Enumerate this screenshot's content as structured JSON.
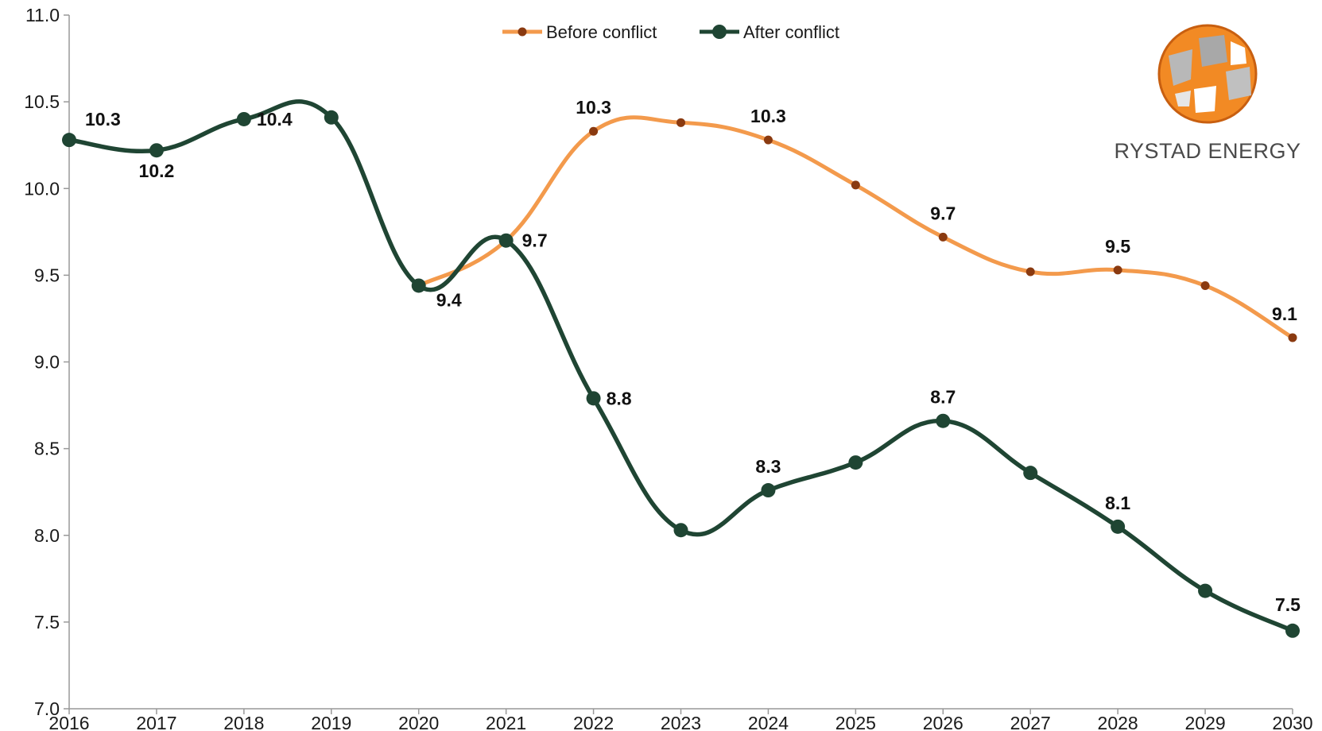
{
  "chart_data": {
    "type": "line",
    "x": [
      "2016",
      "2017",
      "2018",
      "2019",
      "2020",
      "2021",
      "2022",
      "2023",
      "2024",
      "2025",
      "2026",
      "2027",
      "2028",
      "2029",
      "2030"
    ],
    "ylim": [
      7.0,
      11.0
    ],
    "yticks": [
      "7.0",
      "7.5",
      "8.0",
      "8.5",
      "9.0",
      "9.5",
      "10.0",
      "10.5",
      "11.0"
    ],
    "grid": false,
    "legend_position": "top-center",
    "series": [
      {
        "name": "Before conflict",
        "color": "#f39a4c",
        "marker_color": "#8a3a10",
        "values": [
          null,
          null,
          null,
          null,
          9.44,
          9.7,
          10.33,
          10.38,
          10.28,
          10.02,
          9.72,
          9.52,
          9.53,
          9.44,
          9.14
        ]
      },
      {
        "name": "After conflict",
        "color": "#1f4533",
        "marker_color": "#1f4533",
        "values": [
          10.28,
          10.22,
          10.4,
          10.41,
          9.44,
          9.7,
          8.79,
          8.03,
          8.26,
          8.42,
          8.66,
          8.36,
          8.05,
          7.68,
          7.45
        ]
      }
    ],
    "data_labels": [
      {
        "series": 1,
        "index": 0,
        "text": "10.3"
      },
      {
        "series": 1,
        "index": 1,
        "text": "10.2"
      },
      {
        "series": 1,
        "index": 2,
        "text": "10.4"
      },
      {
        "series": 1,
        "index": 4,
        "text": "9.4"
      },
      {
        "series": 1,
        "index": 5,
        "text": "9.7"
      },
      {
        "series": 0,
        "index": 6,
        "text": "10.3"
      },
      {
        "series": 0,
        "index": 8,
        "text": "10.3"
      },
      {
        "series": 0,
        "index": 10,
        "text": "9.7"
      },
      {
        "series": 0,
        "index": 12,
        "text": "9.5"
      },
      {
        "series": 0,
        "index": 14,
        "text": "9.1"
      },
      {
        "series": 1,
        "index": 6,
        "text": "8.8"
      },
      {
        "series": 1,
        "index": 8,
        "text": "8.3"
      },
      {
        "series": 1,
        "index": 10,
        "text": "8.7"
      },
      {
        "series": 1,
        "index": 12,
        "text": "8.1"
      },
      {
        "series": 1,
        "index": 14,
        "text": "7.5"
      }
    ]
  },
  "logo": {
    "text": "RYSTAD ENERGY"
  }
}
